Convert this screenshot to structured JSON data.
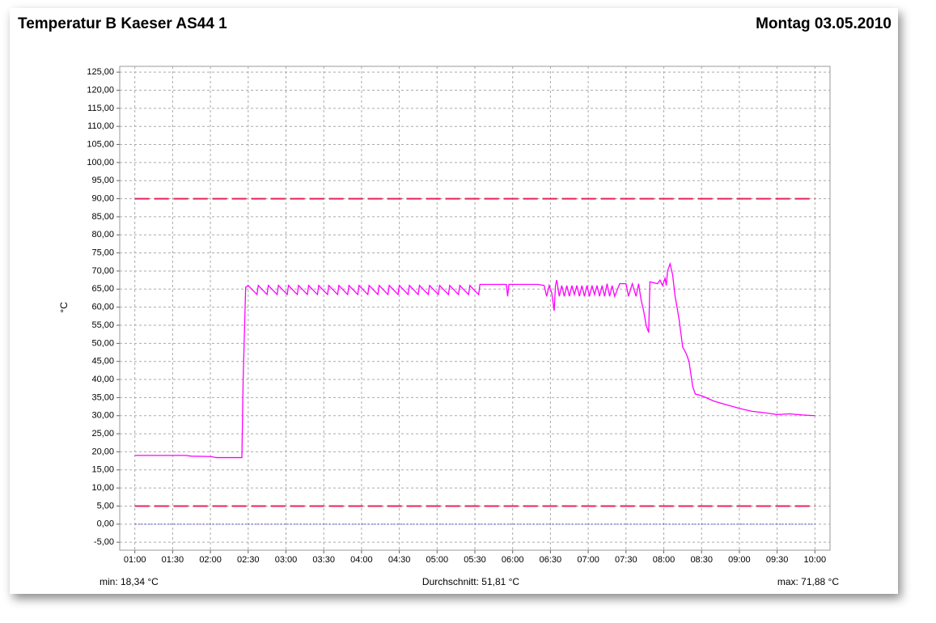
{
  "chart_data": {
    "type": "line",
    "title": "Temperatur B Kaeser AS44 1",
    "date": "Montag 03.05.2010",
    "y_label": "°C",
    "stats": {
      "min": "min: 18,34 °C",
      "mean": "Durchschnitt: 51,81 °C",
      "max": "max: 71,88 °C"
    },
    "xlim": [
      "00:48",
      "10:12"
    ],
    "xticks": [
      "01:00",
      "01:30",
      "02:00",
      "02:30",
      "03:00",
      "03:30",
      "04:00",
      "04:30",
      "05:00",
      "05:30",
      "06:00",
      "06:30",
      "07:00",
      "07:30",
      "08:00",
      "08:30",
      "09:00",
      "09:30",
      "10:00"
    ],
    "ylim": [
      -7.2,
      126.6
    ],
    "yticks": [
      {
        "value": -5,
        "label": "-5,00"
      },
      {
        "value": 0,
        "label": "0,00"
      },
      {
        "value": 5,
        "label": "5,00"
      },
      {
        "value": 10,
        "label": "10,00"
      },
      {
        "value": 15,
        "label": "15,00"
      },
      {
        "value": 20,
        "label": "20,00"
      },
      {
        "value": 25,
        "label": "25,00"
      },
      {
        "value": 30,
        "label": "30,00"
      },
      {
        "value": 35,
        "label": "35,00"
      },
      {
        "value": 40,
        "label": "40,00"
      },
      {
        "value": 45,
        "label": "45,00"
      },
      {
        "value": 50,
        "label": "50,00"
      },
      {
        "value": 55,
        "label": "55,00"
      },
      {
        "value": 60,
        "label": "60,00"
      },
      {
        "value": 65,
        "label": "65,00"
      },
      {
        "value": 70,
        "label": "70,00"
      },
      {
        "value": 75,
        "label": "75,00"
      },
      {
        "value": 80,
        "label": "80,00"
      },
      {
        "value": 85,
        "label": "85,00"
      },
      {
        "value": 90,
        "label": "90,00"
      },
      {
        "value": 95,
        "label": "95,00"
      },
      {
        "value": 100,
        "label": "100,00"
      },
      {
        "value": 105,
        "label": "105,00"
      },
      {
        "value": 110,
        "label": "110,00"
      },
      {
        "value": 115,
        "label": "115,00"
      },
      {
        "value": 120,
        "label": "120,00"
      },
      {
        "value": 125,
        "label": "125,00"
      }
    ],
    "grid": true,
    "reference_lines": [
      {
        "value": 90,
        "color": "#e8245c",
        "style": "dashed",
        "from": "01:00",
        "to": "10:00"
      },
      {
        "value": 5,
        "color": "#e8245c",
        "style": "dashed",
        "from": "01:00",
        "to": "10:00"
      },
      {
        "value": 0,
        "color": "#4a4ad0",
        "style": "dotted",
        "from": "01:00",
        "to": "10:00"
      }
    ],
    "x": [
      "01:00",
      "01:40",
      "01:45",
      "02:00",
      "02:05",
      "02:25",
      "02:26",
      "02:28",
      "02:30",
      "02:37",
      "02:38",
      "02:45",
      "02:46",
      "02:53",
      "02:54",
      "03:01",
      "03:02",
      "03:09",
      "03:10",
      "03:17",
      "03:18",
      "03:25",
      "03:26",
      "03:33",
      "03:34",
      "03:41",
      "03:42",
      "03:49",
      "03:50",
      "03:57",
      "03:58",
      "04:05",
      "04:06",
      "04:13",
      "04:14",
      "04:21",
      "04:22",
      "04:29",
      "04:30",
      "04:37",
      "04:38",
      "04:45",
      "04:46",
      "04:53",
      "04:54",
      "05:01",
      "05:02",
      "05:09",
      "05:10",
      "05:17",
      "05:18",
      "05:25",
      "05:26",
      "05:33",
      "05:34",
      "05:55",
      "05:56",
      "05:57",
      "06:20",
      "06:25",
      "06:27",
      "06:29",
      "06:31",
      "06:33",
      "06:34",
      "06:35",
      "06:37",
      "06:39",
      "06:41",
      "06:43",
      "06:45",
      "06:47",
      "06:49",
      "06:51",
      "06:53",
      "06:55",
      "06:57",
      "06:59",
      "07:01",
      "07:03",
      "07:05",
      "07:07",
      "07:09",
      "07:11",
      "07:13",
      "07:15",
      "07:17",
      "07:19",
      "07:21",
      "07:25",
      "07:30",
      "07:32",
      "07:35",
      "07:38",
      "07:40",
      "07:42",
      "07:44",
      "07:46",
      "07:48",
      "07:49",
      "07:55",
      "07:57",
      "07:59",
      "08:01",
      "08:02",
      "08:03",
      "08:05",
      "08:07",
      "08:09",
      "08:12",
      "08:15",
      "08:18",
      "08:20",
      "08:23",
      "08:25",
      "08:30",
      "08:40",
      "08:50",
      "09:00",
      "09:10",
      "09:20",
      "09:30",
      "09:40",
      "09:50",
      "10:00"
    ],
    "series": [
      {
        "color": "#ff00ff",
        "values": [
          19,
          19,
          18.8,
          18.7,
          18.4,
          18.4,
          40,
          65.5,
          66,
          63.5,
          66,
          63.5,
          66,
          63.5,
          66,
          63.5,
          66,
          63.5,
          66,
          63.5,
          66,
          63.5,
          66,
          63.5,
          66,
          63.5,
          66,
          63.5,
          66,
          63.5,
          66,
          63.5,
          66,
          63.5,
          66,
          63.5,
          66,
          63.5,
          66,
          63.5,
          66,
          63.5,
          66,
          63.5,
          66,
          63.5,
          66,
          63.5,
          66,
          63.5,
          66,
          63.5,
          66,
          63.5,
          66.3,
          66.3,
          63,
          66.3,
          66.3,
          66,
          63,
          66,
          64,
          59,
          66,
          67.5,
          63,
          66,
          63,
          66,
          63,
          66,
          63.5,
          66,
          63,
          66,
          63,
          66,
          63,
          66,
          63.5,
          66,
          63,
          66,
          63,
          66.5,
          63,
          66,
          63,
          66.5,
          66.5,
          63,
          66.5,
          63,
          66.5,
          62,
          59,
          55,
          53,
          67,
          66.5,
          67.5,
          66,
          68,
          66,
          70,
          72,
          69,
          63,
          57,
          49,
          47,
          45,
          38,
          36,
          35.5,
          34,
          33,
          32,
          31.2,
          30.8,
          30.3,
          30.5,
          30.2,
          30
        ]
      }
    ]
  }
}
